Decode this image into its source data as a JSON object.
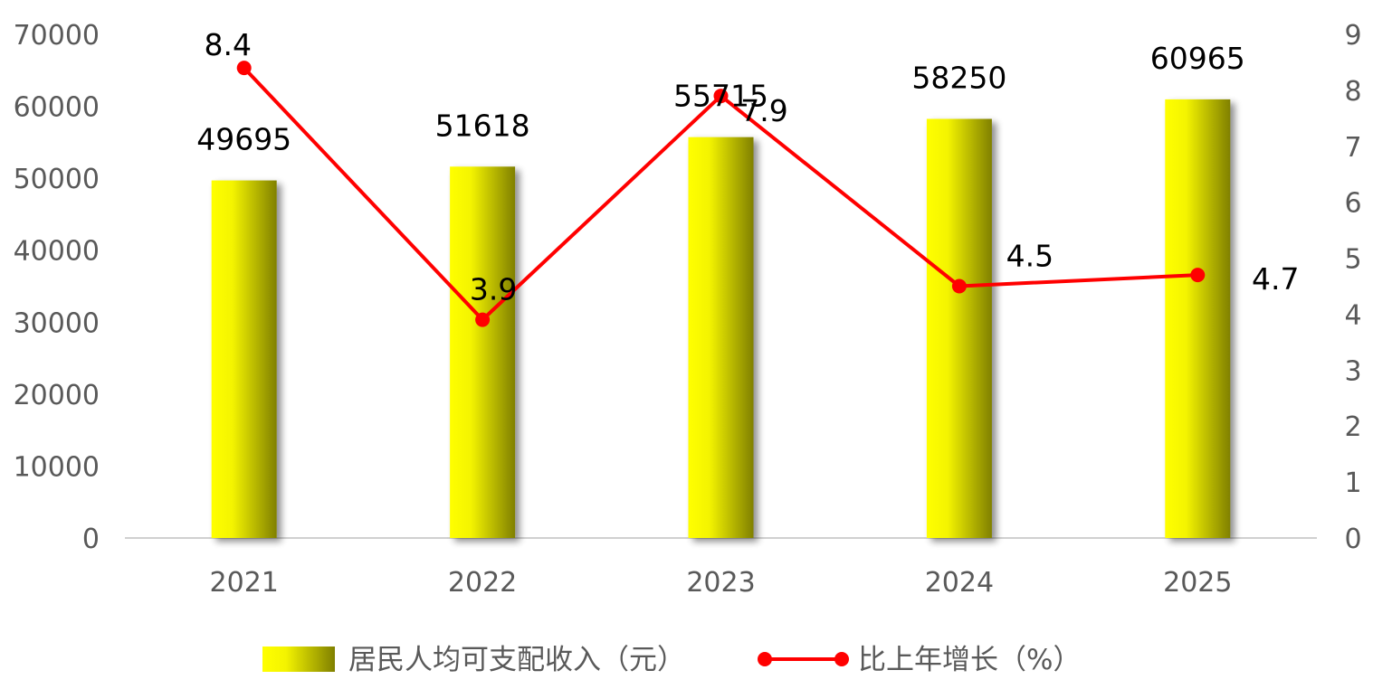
{
  "chart_data": {
    "type": "bar",
    "title": "",
    "categories": [
      "2021",
      "2022",
      "2023",
      "2024",
      "2025"
    ],
    "series": [
      {
        "name": "居民人均可支配收入（元）",
        "type": "bar",
        "axis": "left",
        "values": [
          49695,
          51618,
          55715,
          58250,
          60965
        ],
        "color": "#ffff00",
        "shade_color": "#808000"
      },
      {
        "name": "比上年增长（%）",
        "type": "line",
        "axis": "right",
        "values": [
          8.4,
          3.9,
          7.9,
          4.5,
          4.7
        ],
        "color": "#ff0000"
      }
    ],
    "y_left": {
      "lim": [
        0,
        70000
      ],
      "ticks": [
        "0",
        "10000",
        "20000",
        "30000",
        "40000",
        "50000",
        "60000",
        "70000"
      ]
    },
    "y_right": {
      "lim": [
        0,
        9
      ],
      "ticks": [
        "0",
        "1",
        "2",
        "3",
        "4",
        "5",
        "6",
        "7",
        "8",
        "9"
      ]
    },
    "grid": false,
    "legend_position": "bottom"
  }
}
